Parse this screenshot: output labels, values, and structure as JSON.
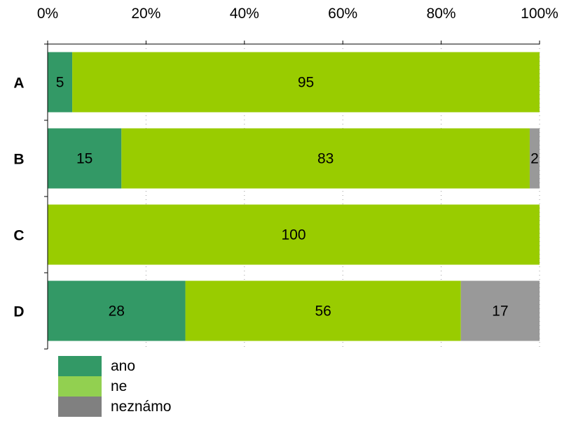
{
  "chart_data": {
    "type": "bar",
    "orientation": "horizontal",
    "stacked": "percent",
    "categories": [
      "A",
      "B",
      "C",
      "D"
    ],
    "series": [
      {
        "name": "ano",
        "values": [
          5,
          15,
          0,
          28
        ],
        "color": "#339966"
      },
      {
        "name": "ne",
        "values": [
          95,
          83,
          100,
          56
        ],
        "color": "#99cc00"
      },
      {
        "name": "neznámo",
        "values": [
          0,
          2,
          0,
          17
        ],
        "color": "#999999"
      }
    ],
    "xlim": [
      0,
      100
    ],
    "x_ticks": [
      "0%",
      "20%",
      "40%",
      "60%",
      "80%",
      "100%"
    ],
    "x_axis_position": "top",
    "grid": "vertical-dotted",
    "legend_position": "bottom-left"
  },
  "legend": {
    "items": [
      {
        "label": "ano",
        "color": "#339966"
      },
      {
        "label": "ne",
        "color": "#92d050"
      },
      {
        "label": "neznámo",
        "color": "#808080"
      }
    ]
  }
}
